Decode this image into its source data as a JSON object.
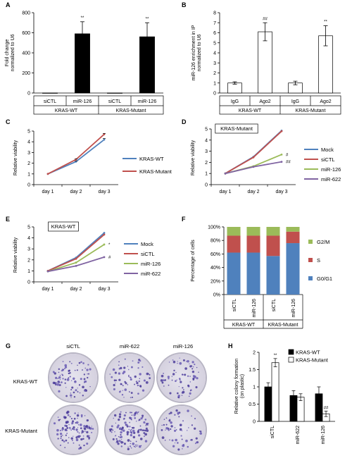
{
  "chart_data": [
    {
      "panel": "A",
      "type": "bar",
      "ylabel": "Fold change\nnormalized to U6",
      "ylim": [
        0,
        800
      ],
      "yticks": [
        0,
        200,
        400,
        600,
        800
      ],
      "categories": [
        "siCTL",
        "miR-126",
        "siCTL",
        "miR-126"
      ],
      "groups": [
        "KRAS-WT",
        "KRAS-Mutant"
      ],
      "values": [
        1,
        590,
        1,
        560
      ],
      "errors": [
        0,
        120,
        0,
        140
      ],
      "annotations": [
        "",
        "**",
        "",
        "**"
      ],
      "bar_color": "#000000"
    },
    {
      "panel": "B",
      "type": "bar",
      "ylabel": "miR-126 enrichment in IP\nnormalized to U6",
      "ylim": [
        0,
        8
      ],
      "yticks": [
        0,
        1,
        2,
        3,
        4,
        5,
        6,
        7,
        8
      ],
      "categories": [
        "IgG",
        "Ago2",
        "IgG",
        "Ago2"
      ],
      "groups": [
        "KRAS-WT",
        "KRAS-Mutant"
      ],
      "values": [
        1,
        6.1,
        1,
        5.7
      ],
      "errors": [
        0.12,
        0.9,
        0.18,
        1.0
      ],
      "annotations": [
        "",
        "##",
        "",
        "**"
      ],
      "bar_color": "#ffffff"
    },
    {
      "panel": "C",
      "type": "line",
      "ylabel": "Relative viability",
      "ylim": [
        0,
        5
      ],
      "yticks": [
        0,
        1,
        2,
        3,
        4,
        5
      ],
      "x": [
        "day 1",
        "day 2",
        "day 3"
      ],
      "series": [
        {
          "name": "KRAS-WT",
          "values": [
            1,
            2.15,
            4.2
          ],
          "errors": [
            0,
            0.05,
            0.1
          ],
          "color": "#4f81bd"
        },
        {
          "name": "KRAS-Mutant",
          "values": [
            1,
            2.35,
            4.7
          ],
          "errors": [
            0,
            0.05,
            0.08
          ],
          "color": "#c0504d"
        }
      ],
      "legend": "right"
    },
    {
      "panel": "D",
      "type": "line",
      "title": "KRAS-Mutant",
      "ylabel": "Relative viability",
      "ylim": [
        0,
        5
      ],
      "yticks": [
        0,
        1,
        2,
        3,
        4,
        5
      ],
      "x": [
        "day 1",
        "day 2",
        "day 3"
      ],
      "series": [
        {
          "name": "Mock",
          "values": [
            1,
            2.5,
            4.85
          ],
          "color": "#4f81bd"
        },
        {
          "name": "siCTL",
          "values": [
            1,
            2.45,
            4.8
          ],
          "color": "#c0504d"
        },
        {
          "name": "miR-126",
          "values": [
            1,
            1.65,
            2.7
          ],
          "color": "#9bbb59"
        },
        {
          "name": "miR-622",
          "values": [
            1,
            1.6,
            2.05
          ],
          "color": "#8064a2"
        }
      ],
      "annotations": [
        "#",
        "##"
      ],
      "legend": "right"
    },
    {
      "panel": "E",
      "type": "line",
      "title": "KRAS-WT",
      "ylabel": "Relative viability",
      "ylim": [
        0,
        5
      ],
      "yticks": [
        0,
        1,
        2,
        3,
        4,
        5
      ],
      "x": [
        "day 1",
        "day 2",
        "day 3"
      ],
      "series": [
        {
          "name": "Mock",
          "values": [
            1,
            2.2,
            4.45
          ],
          "color": "#4f81bd"
        },
        {
          "name": "siCTL",
          "values": [
            1,
            2.1,
            4.3
          ],
          "color": "#c0504d"
        },
        {
          "name": "miR-126",
          "values": [
            0.95,
            1.75,
            3.4
          ],
          "color": "#9bbb59"
        },
        {
          "name": "miR-622",
          "values": [
            0.95,
            1.45,
            2.25
          ],
          "color": "#8064a2"
        }
      ],
      "annotations": [
        "*",
        "#"
      ],
      "legend": "right"
    },
    {
      "panel": "F",
      "type": "bar",
      "stacked": true,
      "ylabel": "Percentage of cells",
      "ylim": [
        0,
        100
      ],
      "yticks": [
        "0%",
        "20%",
        "40%",
        "60%",
        "80%",
        "100%"
      ],
      "categories": [
        "siCTL",
        "miR-126",
        "siCTL",
        "miR-126"
      ],
      "groups": [
        "KRAS-WT",
        "KRAS-Mutant"
      ],
      "series": [
        {
          "name": "G0/G1",
          "values": [
            62,
            62,
            57,
            76
          ],
          "color": "#4f81bd"
        },
        {
          "name": "S",
          "values": [
            25,
            25,
            30,
            17
          ],
          "color": "#c0504d"
        },
        {
          "name": "G2/M",
          "values": [
            13,
            13,
            13,
            7
          ],
          "color": "#9bbb59"
        }
      ],
      "legend_order": [
        "G2/M",
        "S",
        "G0/G1"
      ],
      "legend": "right"
    },
    {
      "panel": "G",
      "type": "image",
      "columns": [
        "siCTL",
        "miR-622",
        "miR-126"
      ],
      "rows": [
        "KRAS-WT",
        "KRAS-Mutant"
      ]
    },
    {
      "panel": "H",
      "type": "bar",
      "ylabel": "Relative colony formation\n(on plastic)",
      "ylim": [
        0,
        2
      ],
      "yticks": [
        0,
        0.5,
        1,
        1.5,
        2
      ],
      "categories": [
        "siCTL",
        "miR-622",
        "miR-126"
      ],
      "series": [
        {
          "name": "KRAS-WT",
          "values": [
            1.0,
            0.75,
            0.8
          ],
          "errors": [
            0.12,
            0.14,
            0.2
          ],
          "color": "#000000"
        },
        {
          "name": "KRAS-Mutant",
          "values": [
            1.7,
            0.7,
            0.22
          ],
          "errors": [
            0.12,
            0.1,
            0.08
          ],
          "color": "#ffffff"
        }
      ],
      "annotations": [
        "**",
        "",
        "##"
      ],
      "legend": "top-right"
    }
  ]
}
